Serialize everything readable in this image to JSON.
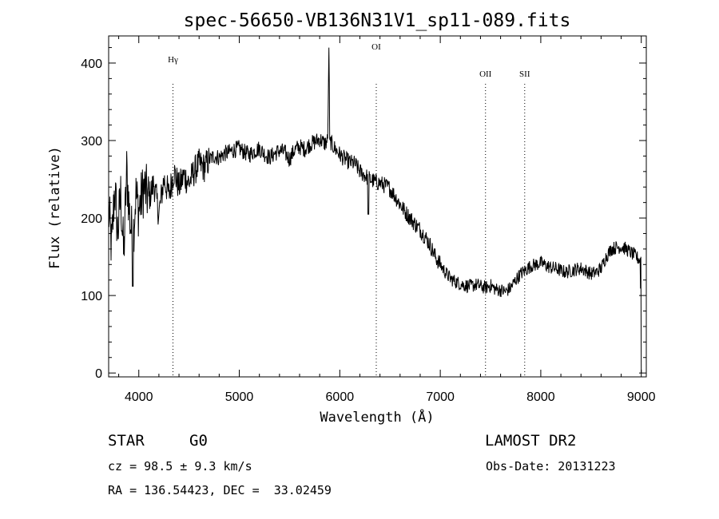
{
  "chart_data": {
    "type": "line",
    "title": "spec-56650-VB136N31V1_sp11-089.fits",
    "xlabel": "Wavelength (Å)",
    "ylabel": "Flux (relative)",
    "xlim": [
      3700,
      9050
    ],
    "ylim": [
      -5,
      435
    ],
    "xticks": [
      "4000",
      "5000",
      "6000",
      "7000",
      "8000",
      "9000"
    ],
    "yticks": [
      "0",
      "100",
      "200",
      "300",
      "400"
    ],
    "line_color": "#000000",
    "line_markers": [
      {
        "label": "Hγ",
        "wavelength": 4340
      },
      {
        "label": "OI",
        "wavelength": 6363
      },
      {
        "label": "OII",
        "wavelength": 7450
      },
      {
        "label": "SII",
        "wavelength": 7840
      }
    ],
    "series": [
      {
        "x": [
          3700,
          3730,
          3760,
          3790,
          3820,
          3850,
          3880,
          3910,
          3940,
          3970,
          4000,
          4050,
          4100,
          4150,
          4200,
          4250,
          4300,
          4350,
          4400,
          4450,
          4500,
          4550,
          4600,
          4650,
          4700,
          4750,
          4800,
          4850,
          4900,
          4950,
          5000,
          5050,
          5100,
          5150,
          5200,
          5250,
          5300,
          5350,
          5400,
          5450,
          5500,
          5550,
          5600,
          5650,
          5700,
          5750,
          5800,
          5850,
          5880,
          5893,
          5900,
          5920,
          5950,
          6000,
          6050,
          6100,
          6150,
          6200,
          6250,
          6300,
          6350,
          6400,
          6450,
          6500,
          6550,
          6600,
          6650,
          6700,
          6750,
          6800,
          6850,
          6900,
          6950,
          7000,
          7050,
          7100,
          7150,
          7200,
          7250,
          7300,
          7350,
          7400,
          7450,
          7500,
          7550,
          7600,
          7650,
          7700,
          7750,
          7800,
          7850,
          7900,
          7950,
          8000,
          8050,
          8100,
          8150,
          8200,
          8250,
          8300,
          8350,
          8400,
          8450,
          8500,
          8550,
          8600,
          8650,
          8700,
          8750,
          8800,
          8850,
          8900,
          8950,
          8990,
          9000
        ],
        "y": [
          210,
          160,
          240,
          180,
          230,
          150,
          260,
          200,
          170,
          230,
          210,
          240,
          225,
          245,
          205,
          250,
          230,
          260,
          240,
          255,
          245,
          260,
          270,
          265,
          275,
          280,
          278,
          283,
          285,
          288,
          290,
          285,
          282,
          286,
          290,
          283,
          278,
          283,
          287,
          285,
          276,
          288,
          292,
          289,
          295,
          298,
          302,
          296,
          300,
          430,
          302,
          295,
          290,
          282,
          276,
          272,
          270,
          260,
          255,
          250,
          247,
          245,
          242,
          238,
          228,
          218,
          208,
          200,
          192,
          185,
          176,
          165,
          150,
          140,
          130,
          122,
          118,
          115,
          113,
          112,
          114,
          112,
          110,
          113,
          108,
          107,
          105,
          110,
          120,
          128,
          133,
          138,
          140,
          142,
          139,
          136,
          135,
          132,
          130,
          132,
          134,
          135,
          132,
          128,
          130,
          135,
          150,
          160,
          162,
          163,
          160,
          155,
          150,
          145,
          0
        ]
      }
    ]
  },
  "info": {
    "object_class": "STAR",
    "subclass": "G0",
    "survey": "LAMOST DR2",
    "cz": "cz = 98.5 ± 9.3 km/s",
    "obs_date": "Obs-Date: 20131223",
    "coords": "RA = 136.54423, DEC =  33.02459"
  }
}
